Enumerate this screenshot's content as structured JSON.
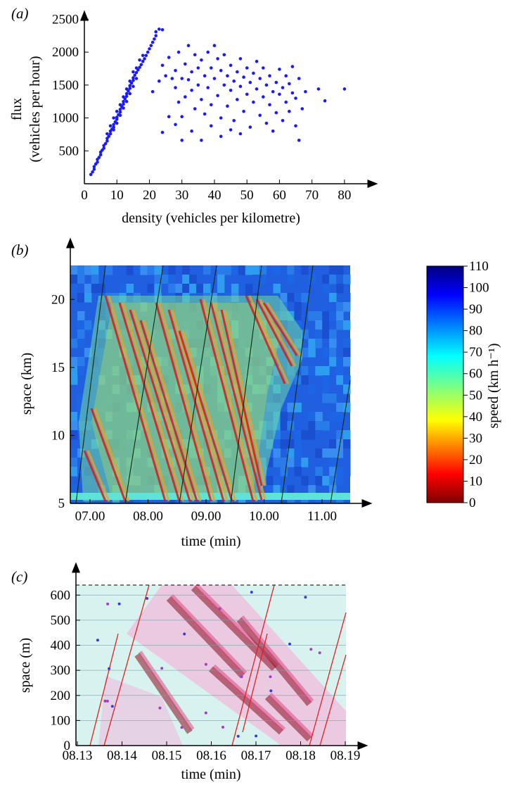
{
  "chart_data": [
    {
      "panel": "(a)",
      "type": "scatter",
      "xlabel": "density (vehicles per kilometre)",
      "ylabel_lines": [
        "flux",
        "(vehicles per hour)"
      ],
      "xlim": [
        0,
        85
      ],
      "ylim": [
        0,
        2600
      ],
      "xticks": [
        "0",
        "10",
        "20",
        "30",
        "40",
        "50",
        "60",
        "70",
        "80"
      ],
      "yticks": [
        "500",
        "1000",
        "1500",
        "2000",
        "2500"
      ],
      "point_color": "#1a1aff",
      "series": [
        {
          "points": [
            [
              2,
              140
            ],
            [
              2.5,
              180
            ],
            [
              3,
              220
            ],
            [
              3,
              260
            ],
            [
              3.5,
              300
            ],
            [
              4,
              330
            ],
            [
              4,
              370
            ],
            [
              4.5,
              400
            ],
            [
              5,
              440
            ],
            [
              5,
              480
            ],
            [
              5.5,
              510
            ],
            [
              6,
              540
            ],
            [
              6,
              580
            ],
            [
              6.5,
              610
            ],
            [
              7,
              650
            ],
            [
              7,
              690
            ],
            [
              7.5,
              720
            ],
            [
              8,
              760
            ],
            [
              8,
              800
            ],
            [
              8.5,
              830
            ],
            [
              9,
              860
            ],
            [
              9,
              900
            ],
            [
              9.5,
              940
            ],
            [
              10,
              980
            ],
            [
              10,
              1010
            ],
            [
              10.5,
              1050
            ],
            [
              11,
              1090
            ],
            [
              11,
              1130
            ],
            [
              11.5,
              1170
            ],
            [
              12,
              1210
            ],
            [
              12,
              1250
            ],
            [
              12.5,
              1290
            ],
            [
              13,
              1330
            ],
            [
              13,
              1370
            ],
            [
              13.5,
              1410
            ],
            [
              14,
              1450
            ],
            [
              14,
              1490
            ],
            [
              14.5,
              1530
            ],
            [
              15,
              1570
            ],
            [
              15,
              1610
            ],
            [
              15.5,
              1650
            ],
            [
              16,
              1690
            ],
            [
              16.5,
              1730
            ],
            [
              17,
              1770
            ],
            [
              17.5,
              1810
            ],
            [
              18,
              1860
            ],
            [
              18.5,
              1900
            ],
            [
              19,
              1950
            ],
            [
              19.5,
              2000
            ],
            [
              20,
              2050
            ],
            [
              20.5,
              2100
            ],
            [
              21,
              2150
            ],
            [
              21.5,
              2200
            ],
            [
              22,
              2250
            ],
            [
              22,
              2310
            ],
            [
              23,
              2350
            ],
            [
              24,
              2340
            ],
            [
              7,
              760
            ],
            [
              8,
              880
            ],
            [
              9,
              1000
            ],
            [
              10,
              1100
            ],
            [
              11,
              1200
            ],
            [
              12,
              1320
            ],
            [
              13,
              1440
            ],
            [
              14,
              1560
            ],
            [
              15,
              1700
            ],
            [
              16,
              1760
            ],
            [
              17,
              1880
            ],
            [
              18,
              1950
            ],
            [
              9,
              820
            ],
            [
              10,
              920
            ],
            [
              11,
              1040
            ],
            [
              12,
              1150
            ],
            [
              13,
              1250
            ],
            [
              14,
              1370
            ],
            [
              15,
              1480
            ],
            [
              16,
              1600
            ],
            [
              21,
              1400
            ],
            [
              23,
              1560
            ],
            [
              24,
              1800
            ],
            [
              25,
              1640
            ],
            [
              26,
              1920
            ],
            [
              27,
              1600
            ],
            [
              28,
              1460
            ],
            [
              28,
              1720
            ],
            [
              29,
              2000
            ],
            [
              29,
              1240
            ],
            [
              30,
              1600
            ],
            [
              30,
              1020
            ],
            [
              31,
              1820
            ],
            [
              31,
              1320
            ],
            [
              32,
              2100
            ],
            [
              32,
              1580
            ],
            [
              33,
              1700
            ],
            [
              33,
              1420
            ],
            [
              34,
              1960
            ],
            [
              34,
              1140
            ],
            [
              35,
              1760
            ],
            [
              35,
              1500
            ],
            [
              36,
              1880
            ],
            [
              36,
              1280
            ],
            [
              37,
              1640
            ],
            [
              37,
              1060
            ],
            [
              38,
              2000
            ],
            [
              38,
              1460
            ],
            [
              39,
              1760
            ],
            [
              39,
              1200
            ],
            [
              40,
              2100
            ],
            [
              40,
              1600
            ],
            [
              41,
              1900
            ],
            [
              41,
              1340
            ],
            [
              42,
              1720
            ],
            [
              42,
              1000
            ],
            [
              43,
              1960
            ],
            [
              43,
              1500
            ],
            [
              44,
              1640
            ],
            [
              44,
              1180
            ],
            [
              45,
              1800
            ],
            [
              45,
              1420
            ],
            [
              46,
              1560
            ],
            [
              46,
              960
            ],
            [
              47,
              1700
            ],
            [
              47,
              1280
            ],
            [
              48,
              1900
            ],
            [
              48,
              1480
            ],
            [
              49,
              1620
            ],
            [
              49,
              1100
            ],
            [
              50,
              1760
            ],
            [
              50,
              1360
            ],
            [
              51,
              1540
            ],
            [
              51,
              860
            ],
            [
              52,
              1680
            ],
            [
              52,
              1240
            ],
            [
              53,
              1860
            ],
            [
              53,
              1440
            ],
            [
              54,
              1600
            ],
            [
              54,
              1040
            ],
            [
              55,
              1760
            ],
            [
              55,
              1320
            ],
            [
              56,
              1500
            ],
            [
              56,
              920
            ],
            [
              57,
              1640
            ],
            [
              57,
              1200
            ],
            [
              58,
              1400
            ],
            [
              58,
              800
            ],
            [
              59,
              1540
            ],
            [
              59,
              1080
            ],
            [
              60,
              1740
            ],
            [
              60,
              1360
            ],
            [
              61,
              1460
            ],
            [
              61,
              960
            ],
            [
              62,
              1640
            ],
            [
              62,
              1240
            ],
            [
              63,
              1520
            ],
            [
              63,
              1100
            ],
            [
              64,
              1780
            ],
            [
              64,
              1380
            ],
            [
              65,
              1300
            ],
            [
              65,
              880
            ],
            [
              66,
              1600
            ],
            [
              66,
              660
            ],
            [
              67,
              1140
            ],
            [
              68,
              1400
            ],
            [
              72,
              1440
            ],
            [
              74,
              1260
            ],
            [
              80,
              1440
            ],
            [
              24,
              780
            ],
            [
              26,
              1020
            ],
            [
              28,
              900
            ],
            [
              30,
              660
            ],
            [
              33,
              800
            ],
            [
              36,
              660
            ],
            [
              39,
              880
            ],
            [
              42,
              720
            ],
            [
              45,
              820
            ],
            [
              48,
              760
            ]
          ]
        }
      ]
    },
    {
      "panel": "(b)",
      "type": "heatmap",
      "xlabel": "time (min)",
      "ylabel": "space (km)",
      "xticks": [
        "07.00",
        "08.00",
        "09.00",
        "10.00",
        "11.00"
      ],
      "yticks": [
        "5",
        "10",
        "15",
        "20"
      ],
      "ylim": [
        5,
        22.5
      ],
      "colorbar": {
        "label": "speed (km h⁻¹)",
        "ticks": [
          "110",
          "100",
          "90",
          "80",
          "70",
          "60",
          "50",
          "40",
          "30",
          "20",
          "10",
          "0"
        ],
        "min": 0,
        "max": 110
      }
    },
    {
      "panel": "(c)",
      "type": "heatmap",
      "xlabel": "time (min)",
      "ylabel": "space (m)",
      "xticks": [
        "08.13",
        "08.14",
        "08.15",
        "08.16",
        "08.17",
        "08.18",
        "08.19"
      ],
      "yticks": [
        "0",
        "100",
        "200",
        "300",
        "400",
        "500",
        "600"
      ],
      "ylim": [
        0,
        640
      ]
    }
  ],
  "panel_labels": {
    "a": "(a)",
    "b": "(b)",
    "c": "(c)"
  }
}
